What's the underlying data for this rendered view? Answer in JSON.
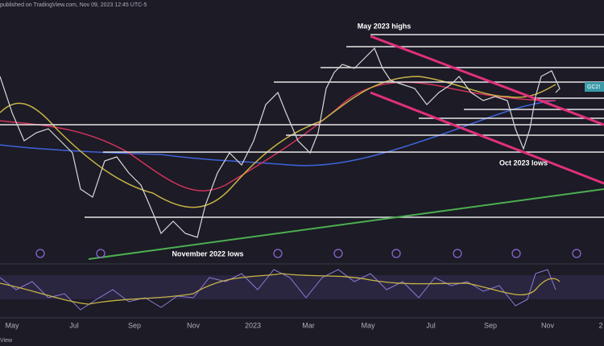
{
  "header": "published on TradingView.com, Nov 09, 2023 12:45 UTC-5",
  "annotations": {
    "highs": "May 2023 highs",
    "oct_lows": "Oct 2023 lows",
    "nov_lows": "November 2022 lows"
  },
  "symbol_tag": "GC2!",
  "x_labels": [
    "May",
    "Jul",
    "Sep",
    "Nov",
    "2023",
    "Mar",
    "May",
    "Jul",
    "Sep",
    "Nov",
    "2"
  ],
  "footer": "View"
}
